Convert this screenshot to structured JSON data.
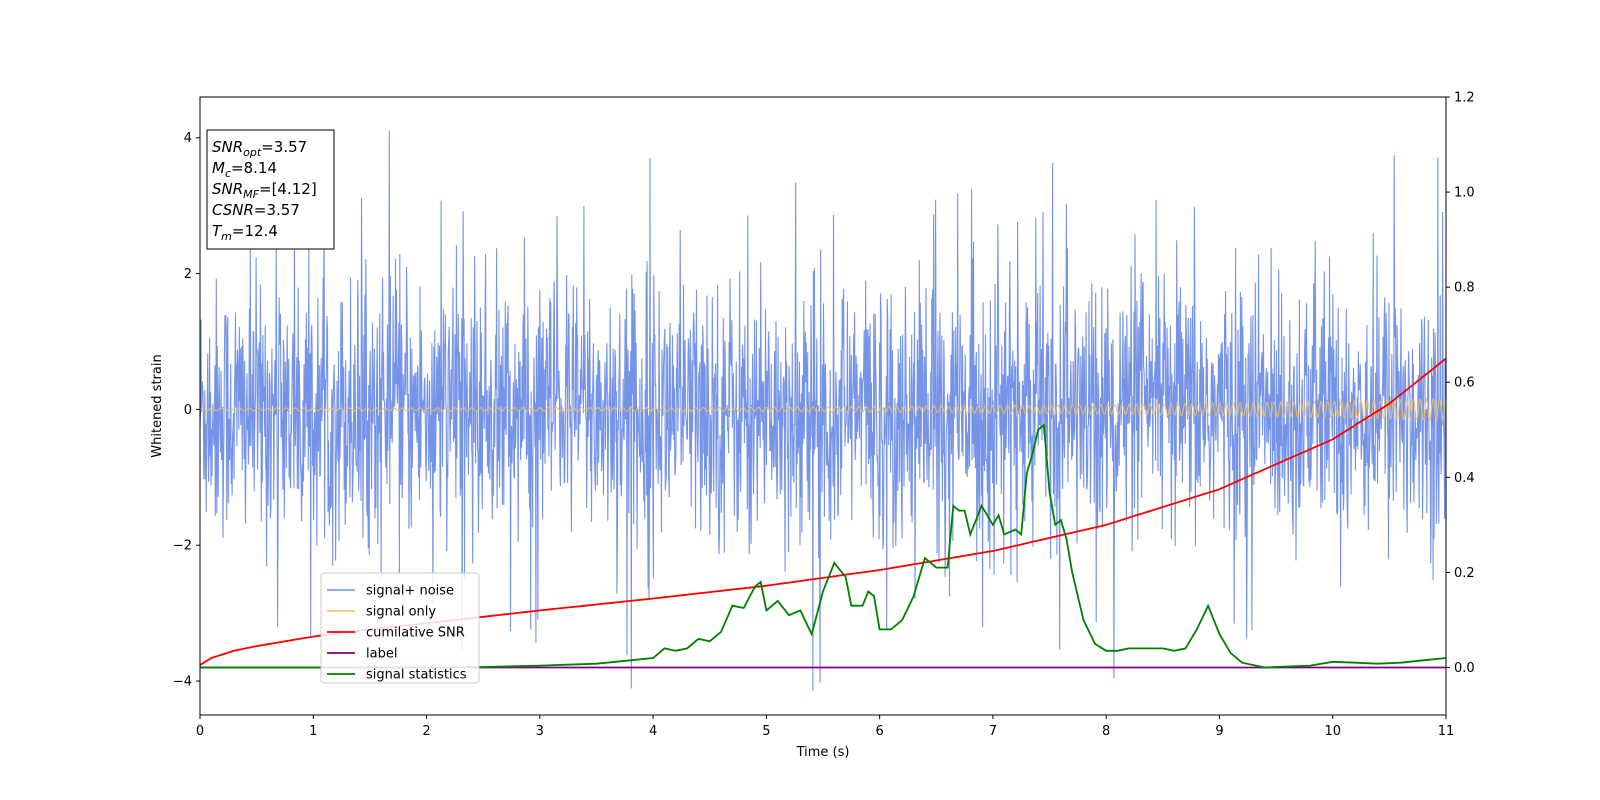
{
  "chart_data": {
    "type": "line",
    "xlabel": "Time (s)",
    "ylabel": "Whitened strain",
    "xlim": [
      0,
      11
    ],
    "ylim": [
      -4.5,
      4.6
    ],
    "ylim_right": [
      -0.1,
      1.2
    ],
    "x_ticks": [
      0,
      1,
      2,
      3,
      4,
      5,
      6,
      7,
      8,
      9,
      10,
      11
    ],
    "y_ticks": [
      -4,
      -2,
      0,
      2,
      4
    ],
    "y_ticks_right": [
      "0.0",
      "0.2",
      "0.4",
      "0.6",
      "0.8",
      "1.0",
      "1.2"
    ],
    "grid": false,
    "legend_position": "lower-left",
    "info_box": [
      {
        "base": "SNR",
        "sub": "opt",
        "value": "=3.57"
      },
      {
        "base": "M",
        "sub": "c",
        "value": "=8.14"
      },
      {
        "base": "SNR",
        "sub": "MF",
        "value": "=[4.12]"
      },
      {
        "base": "CSNR",
        "sub": "",
        "value": "=3.57"
      },
      {
        "base": "T",
        "sub": "m",
        "value": "=12.4"
      }
    ],
    "series": [
      {
        "name": "signal+ noise",
        "color": "#6f8ee6",
        "axis": "left",
        "kind": "noise",
        "std": 1.0,
        "spike_max": 4.15
      },
      {
        "name": "signal only",
        "color": "#f5c060",
        "axis": "left",
        "kind": "chirp",
        "points": [
          [
            0,
            0.02
          ],
          [
            5,
            0.03
          ],
          [
            8,
            0.07
          ],
          [
            10,
            0.12
          ],
          [
            11,
            0.16
          ]
        ]
      },
      {
        "name": "cumilative SNR",
        "color": "#ff0000",
        "axis": "right",
        "points": [
          [
            0,
            0.005
          ],
          [
            0.1,
            0.02
          ],
          [
            0.3,
            0.035
          ],
          [
            0.5,
            0.045
          ],
          [
            1,
            0.065
          ],
          [
            1.5,
            0.08
          ],
          [
            2,
            0.093
          ],
          [
            3,
            0.12
          ],
          [
            4,
            0.145
          ],
          [
            5,
            0.172
          ],
          [
            6,
            0.205
          ],
          [
            7,
            0.245
          ],
          [
            8,
            0.3
          ],
          [
            9,
            0.375
          ],
          [
            10,
            0.48
          ],
          [
            10.5,
            0.555
          ],
          [
            11,
            0.65
          ]
        ]
      },
      {
        "name": "label",
        "color": "#800080",
        "axis": "right",
        "points": [
          [
            0,
            0.0
          ],
          [
            11,
            0.0
          ]
        ]
      },
      {
        "name": "signal statistics",
        "color": "#008000",
        "axis": "right",
        "points": [
          [
            0,
            0.0
          ],
          [
            1,
            0.0
          ],
          [
            2,
            0.0
          ],
          [
            2.5,
            0.001
          ],
          [
            3,
            0.004
          ],
          [
            3.5,
            0.008
          ],
          [
            3.8,
            0.015
          ],
          [
            4.0,
            0.02
          ],
          [
            4.1,
            0.04
          ],
          [
            4.2,
            0.035
          ],
          [
            4.3,
            0.04
          ],
          [
            4.4,
            0.06
          ],
          [
            4.5,
            0.055
          ],
          [
            4.6,
            0.075
          ],
          [
            4.7,
            0.13
          ],
          [
            4.8,
            0.125
          ],
          [
            4.9,
            0.17
          ],
          [
            4.95,
            0.18
          ],
          [
            5.0,
            0.12
          ],
          [
            5.1,
            0.14
          ],
          [
            5.2,
            0.11
          ],
          [
            5.3,
            0.12
          ],
          [
            5.4,
            0.07
          ],
          [
            5.5,
            0.16
          ],
          [
            5.6,
            0.22
          ],
          [
            5.7,
            0.19
          ],
          [
            5.75,
            0.13
          ],
          [
            5.85,
            0.13
          ],
          [
            5.9,
            0.16
          ],
          [
            5.95,
            0.15
          ],
          [
            6.0,
            0.08
          ],
          [
            6.1,
            0.08
          ],
          [
            6.2,
            0.1
          ],
          [
            6.3,
            0.15
          ],
          [
            6.4,
            0.23
          ],
          [
            6.5,
            0.21
          ],
          [
            6.6,
            0.21
          ],
          [
            6.65,
            0.34
          ],
          [
            6.7,
            0.33
          ],
          [
            6.75,
            0.33
          ],
          [
            6.8,
            0.28
          ],
          [
            6.9,
            0.34
          ],
          [
            7.0,
            0.3
          ],
          [
            7.05,
            0.32
          ],
          [
            7.1,
            0.28
          ],
          [
            7.2,
            0.29
          ],
          [
            7.25,
            0.28
          ],
          [
            7.3,
            0.41
          ],
          [
            7.35,
            0.45
          ],
          [
            7.4,
            0.5
          ],
          [
            7.45,
            0.51
          ],
          [
            7.5,
            0.37
          ],
          [
            7.55,
            0.3
          ],
          [
            7.6,
            0.31
          ],
          [
            7.65,
            0.27
          ],
          [
            7.7,
            0.2
          ],
          [
            7.8,
            0.1
          ],
          [
            7.9,
            0.05
          ],
          [
            8.0,
            0.035
          ],
          [
            8.1,
            0.035
          ],
          [
            8.2,
            0.04
          ],
          [
            8.3,
            0.04
          ],
          [
            8.5,
            0.04
          ],
          [
            8.6,
            0.035
          ],
          [
            8.7,
            0.04
          ],
          [
            8.8,
            0.08
          ],
          [
            8.9,
            0.13
          ],
          [
            9.0,
            0.07
          ],
          [
            9.1,
            0.03
          ],
          [
            9.2,
            0.01
          ],
          [
            9.4,
            0.0
          ],
          [
            9.6,
            0.002
          ],
          [
            9.8,
            0.004
          ],
          [
            10.0,
            0.012
          ],
          [
            10.2,
            0.01
          ],
          [
            10.4,
            0.008
          ],
          [
            10.6,
            0.01
          ],
          [
            10.8,
            0.015
          ],
          [
            11.0,
            0.02
          ]
        ]
      }
    ]
  }
}
